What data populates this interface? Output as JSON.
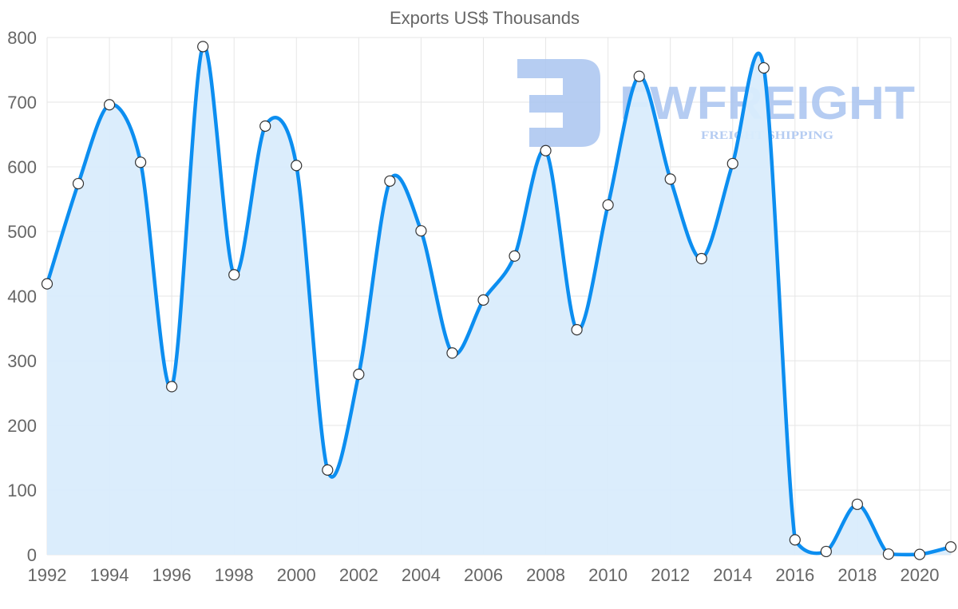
{
  "chart_data": {
    "type": "line",
    "title": "Exports US$ Thousands",
    "xlabel": "",
    "ylabel": "",
    "x": [
      1992,
      1993,
      1994,
      1995,
      1996,
      1997,
      1998,
      1999,
      2000,
      2001,
      2002,
      2003,
      2004,
      2005,
      2006,
      2007,
      2008,
      2009,
      2010,
      2011,
      2012,
      2013,
      2014,
      2015,
      2016,
      2017,
      2018,
      2019,
      2020,
      2021
    ],
    "series": [
      {
        "name": "Exports US$ Thousands",
        "values": [
          419,
          574,
          696,
          607,
          260,
          786,
          433,
          663,
          602,
          131,
          279,
          578,
          501,
          312,
          394,
          462,
          625,
          348,
          541,
          740,
          581,
          458,
          605,
          753,
          23,
          5,
          78,
          1,
          0.5,
          12
        ],
        "color": "#0c8ef0",
        "fill": "#d9ecfc"
      }
    ],
    "xticks": [
      "1992",
      "1994",
      "1996",
      "1998",
      "2000",
      "2002",
      "2004",
      "2006",
      "2008",
      "2010",
      "2012",
      "2014",
      "2016",
      "2018",
      "2020"
    ],
    "yticks": [
      "0",
      "100",
      "200",
      "300",
      "400",
      "500",
      "600",
      "700",
      "800"
    ],
    "ylim": [
      0,
      800
    ],
    "xlim": [
      1992,
      2021
    ],
    "grid": true,
    "legend": "none"
  },
  "watermark": {
    "name": "FWFREIGHT",
    "tagline": "FREIGHT SHIPPING",
    "color": "#a9c4f0"
  }
}
